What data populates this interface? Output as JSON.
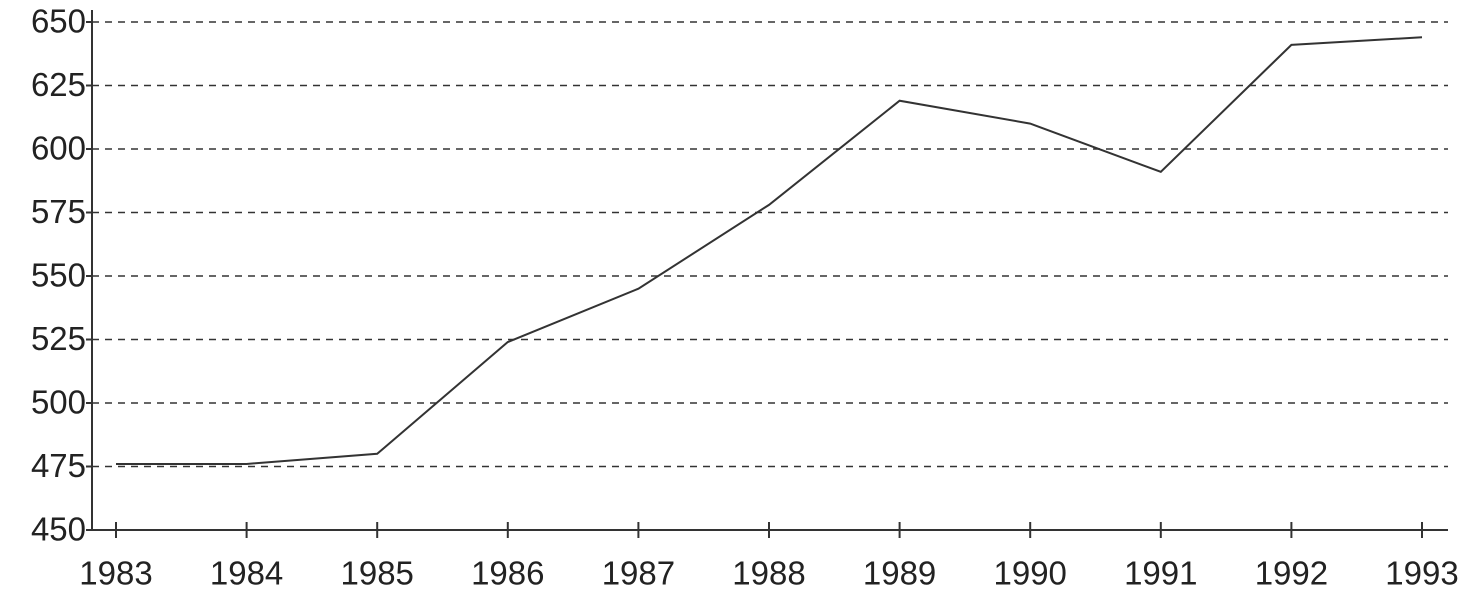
{
  "chart_data": {
    "type": "line",
    "categories": [
      "1983",
      "1984",
      "1985",
      "1986",
      "1987",
      "1988",
      "1989",
      "1990",
      "1991",
      "1992",
      "1993"
    ],
    "values": [
      476,
      476,
      480,
      524,
      545,
      578,
      619,
      610,
      591,
      641,
      644
    ],
    "color": "#333333",
    "ylim": [
      450,
      650
    ],
    "yticks": [
      450,
      475,
      500,
      525,
      550,
      575,
      600,
      625,
      650
    ],
    "grid": true
  }
}
